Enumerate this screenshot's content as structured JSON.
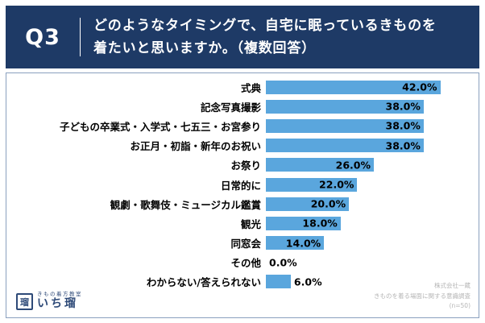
{
  "header": {
    "question_number": "Q3",
    "title_line1": "どのようなタイミングで、自宅に眠っているきものを",
    "title_line2": "着たいと思いますか。（複数回答）"
  },
  "chart_data": {
    "type": "bar",
    "orientation": "horizontal",
    "categories": [
      "式典",
      "記念写真撮影",
      "子どもの卒業式・入学式・七五三・お宮参り",
      "お正月・初詣・新年のお祝い",
      "お祭り",
      "日常的に",
      "観劇・歌舞伎・ミュージカル鑑賞",
      "観光",
      "同窓会",
      "その他",
      "わからない/答えられない"
    ],
    "values": [
      42.0,
      38.0,
      38.0,
      38.0,
      26.0,
      22.0,
      20.0,
      18.0,
      14.0,
      0.0,
      6.0
    ],
    "value_labels": [
      "42.0%",
      "38.0%",
      "38.0%",
      "38.0%",
      "26.0%",
      "22.0%",
      "20.0%",
      "18.0%",
      "14.0%",
      "0.0%",
      "6.0%"
    ],
    "xlim": [
      0,
      45
    ],
    "bar_color": "#5aa6dd",
    "grid": false,
    "legend": "none",
    "data_label_position": "inside-end"
  },
  "footer": {
    "logo_stamp": "瑠",
    "logo_sub": "きもの着方教室",
    "logo_main": "いち瑠",
    "credit_line1": "株式会社一蔵",
    "credit_line2": "きものを着る場面に関する意識調査",
    "credit_line3": "(n=50)"
  },
  "colors": {
    "header_bg": "#1e3a66",
    "bar": "#5aa6dd",
    "panel_border": "#8aa0bf",
    "credit_text": "#b5b5b5",
    "logo_text": "#2e4a78"
  }
}
